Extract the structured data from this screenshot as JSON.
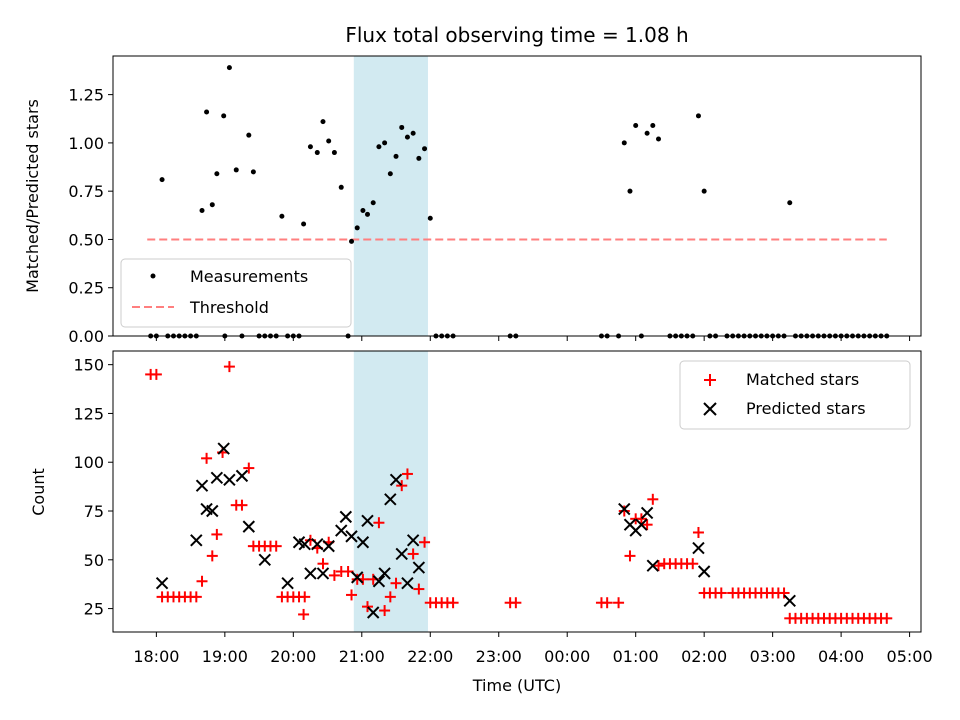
{
  "chart_data": [
    {
      "type": "scatter",
      "title": "Flux total observing time = 1.08 h",
      "ylabel": "Matched/Predicted stars",
      "xlim": [
        "17:22",
        "05:10"
      ],
      "ylim": [
        0,
        1.45
      ],
      "y_ticks": [
        "0.00",
        "0.25",
        "0.50",
        "0.75",
        "1.00",
        "1.25"
      ],
      "highlight_span": {
        "from": "20:53",
        "to": "21:58",
        "color": "#add8e6"
      },
      "legend_position": "lower-left",
      "legend": [
        "Measurements",
        "Threshold"
      ],
      "threshold": {
        "name": "Threshold",
        "value": 0.5,
        "x_from": "17:52",
        "x_to": "04:40",
        "color": "#ff7f7f",
        "style": "dashed"
      },
      "series": [
        {
          "name": "Measurements",
          "marker": "dot",
          "color": "#000000",
          "points": [
            [
              "17:55",
              0
            ],
            [
              "18:00",
              0
            ],
            [
              "18:05",
              0.81
            ],
            [
              "18:10",
              0
            ],
            [
              "18:15",
              0
            ],
            [
              "18:20",
              0
            ],
            [
              "18:25",
              0
            ],
            [
              "18:30",
              0
            ],
            [
              "18:35",
              0
            ],
            [
              "18:40",
              0.65
            ],
            [
              "18:44",
              1.16
            ],
            [
              "18:49",
              0.68
            ],
            [
              "18:53",
              0.84
            ],
            [
              "18:59",
              1.14
            ],
            [
              "19:00",
              0
            ],
            [
              "19:04",
              1.39
            ],
            [
              "19:10",
              0.86
            ],
            [
              "19:15",
              0
            ],
            [
              "19:21",
              1.04
            ],
            [
              "19:25",
              0.85
            ],
            [
              "19:30",
              0
            ],
            [
              "19:35",
              0
            ],
            [
              "19:40",
              0
            ],
            [
              "19:45",
              0
            ],
            [
              "19:50",
              0.62
            ],
            [
              "19:55",
              0
            ],
            [
              "20:00",
              0
            ],
            [
              "20:05",
              0
            ],
            [
              "20:09",
              0.58
            ],
            [
              "20:15",
              0.98
            ],
            [
              "20:21",
              0.95
            ],
            [
              "20:26",
              1.11
            ],
            [
              "20:31",
              1.01
            ],
            [
              "20:36",
              0.95
            ],
            [
              "20:42",
              0.77
            ],
            [
              "20:48",
              0
            ],
            [
              "20:51",
              0.49
            ],
            [
              "20:56",
              0.56
            ],
            [
              "21:01",
              0.65
            ],
            [
              "21:05",
              0.63
            ],
            [
              "21:10",
              0.69
            ],
            [
              "21:15",
              0.98
            ],
            [
              "21:20",
              1.0
            ],
            [
              "21:25",
              0.84
            ],
            [
              "21:30",
              0.93
            ],
            [
              "21:35",
              1.08
            ],
            [
              "21:40",
              1.03
            ],
            [
              "21:45",
              1.05
            ],
            [
              "21:50",
              0.92
            ],
            [
              "21:55",
              0.97
            ],
            [
              "22:00",
              0.61
            ],
            [
              "22:05",
              0
            ],
            [
              "22:10",
              0
            ],
            [
              "22:15",
              0
            ],
            [
              "22:20",
              0
            ],
            [
              "23:10",
              0
            ],
            [
              "23:15",
              0
            ],
            [
              "00:30",
              0
            ],
            [
              "00:35",
              0
            ],
            [
              "00:45",
              0
            ],
            [
              "00:50",
              1.0
            ],
            [
              "00:55",
              0.75
            ],
            [
              "01:00",
              1.09
            ],
            [
              "01:05",
              0
            ],
            [
              "01:10",
              1.05
            ],
            [
              "01:15",
              1.09
            ],
            [
              "01:20",
              1.02
            ],
            [
              "01:30",
              0
            ],
            [
              "01:35",
              0
            ],
            [
              "01:40",
              0
            ],
            [
              "01:45",
              0
            ],
            [
              "01:50",
              0
            ],
            [
              "01:55",
              1.14
            ],
            [
              "02:00",
              0.75
            ],
            [
              "02:05",
              0
            ],
            [
              "02:10",
              0
            ],
            [
              "02:20",
              0
            ],
            [
              "02:25",
              0
            ],
            [
              "02:30",
              0
            ],
            [
              "02:35",
              0
            ],
            [
              "02:40",
              0
            ],
            [
              "02:45",
              0
            ],
            [
              "02:50",
              0
            ],
            [
              "02:55",
              0
            ],
            [
              "03:00",
              0
            ],
            [
              "03:05",
              0
            ],
            [
              "03:10",
              0
            ],
            [
              "03:15",
              0.69
            ],
            [
              "03:20",
              0
            ],
            [
              "03:25",
              0
            ],
            [
              "03:30",
              0
            ],
            [
              "03:35",
              0
            ],
            [
              "03:40",
              0
            ],
            [
              "03:45",
              0
            ],
            [
              "03:50",
              0
            ],
            [
              "03:55",
              0
            ],
            [
              "04:00",
              0
            ],
            [
              "04:05",
              0
            ],
            [
              "04:10",
              0
            ],
            [
              "04:15",
              0
            ],
            [
              "04:20",
              0
            ],
            [
              "04:25",
              0
            ],
            [
              "04:30",
              0
            ],
            [
              "04:35",
              0
            ],
            [
              "04:40",
              0
            ]
          ]
        }
      ]
    },
    {
      "type": "scatter",
      "xlabel": "Time (UTC)",
      "ylabel": "Count",
      "xlim": [
        "17:22",
        "05:10"
      ],
      "ylim": [
        13,
        157
      ],
      "x_ticks": [
        "18:00",
        "19:00",
        "20:00",
        "21:00",
        "22:00",
        "23:00",
        "00:00",
        "01:00",
        "02:00",
        "03:00",
        "04:00",
        "05:00"
      ],
      "y_ticks": [
        "25",
        "50",
        "75",
        "100",
        "125",
        "150"
      ],
      "highlight_span": {
        "from": "20:53",
        "to": "21:58",
        "color": "#add8e6"
      },
      "legend_position": "top-right",
      "legend": [
        "Matched stars",
        "Predicted stars"
      ],
      "series": [
        {
          "name": "Matched stars",
          "marker": "plus",
          "color": "#ff0000",
          "points": [
            [
              "17:55",
              145
            ],
            [
              "18:00",
              145
            ],
            [
              "18:05",
              31
            ],
            [
              "18:10",
              31
            ],
            [
              "18:15",
              31
            ],
            [
              "18:20",
              31
            ],
            [
              "18:25",
              31
            ],
            [
              "18:30",
              31
            ],
            [
              "18:35",
              31
            ],
            [
              "18:40",
              39
            ],
            [
              "18:44",
              102
            ],
            [
              "18:49",
              52
            ],
            [
              "18:53",
              63
            ],
            [
              "18:58",
              105
            ],
            [
              "19:04",
              149
            ],
            [
              "19:10",
              78
            ],
            [
              "19:15",
              78
            ],
            [
              "19:21",
              97
            ],
            [
              "19:25",
              57
            ],
            [
              "19:30",
              57
            ],
            [
              "19:35",
              57
            ],
            [
              "19:40",
              57
            ],
            [
              "19:45",
              57
            ],
            [
              "19:50",
              31
            ],
            [
              "19:55",
              31
            ],
            [
              "20:00",
              31
            ],
            [
              "20:05",
              31
            ],
            [
              "20:10",
              31
            ],
            [
              "20:09",
              22
            ],
            [
              "20:15",
              60
            ],
            [
              "20:21",
              56
            ],
            [
              "20:26",
              48
            ],
            [
              "20:31",
              59
            ],
            [
              "20:36",
              42
            ],
            [
              "20:42",
              44
            ],
            [
              "20:48",
              44
            ],
            [
              "20:51",
              32
            ],
            [
              "20:56",
              40
            ],
            [
              "21:01",
              40
            ],
            [
              "21:05",
              26
            ],
            [
              "21:10",
              40
            ],
            [
              "21:15",
              69
            ],
            [
              "21:20",
              24
            ],
            [
              "21:25",
              31
            ],
            [
              "21:30",
              38
            ],
            [
              "21:35",
              88
            ],
            [
              "21:40",
              94
            ],
            [
              "21:45",
              53
            ],
            [
              "21:50",
              35
            ],
            [
              "21:55",
              59
            ],
            [
              "22:00",
              28
            ],
            [
              "22:05",
              28
            ],
            [
              "22:10",
              28
            ],
            [
              "22:15",
              28
            ],
            [
              "22:20",
              28
            ],
            [
              "23:10",
              28
            ],
            [
              "23:15",
              28
            ],
            [
              "00:30",
              28
            ],
            [
              "00:35",
              28
            ],
            [
              "00:45",
              28
            ],
            [
              "00:50",
              75
            ],
            [
              "00:55",
              52
            ],
            [
              "01:00",
              71
            ],
            [
              "01:05",
              71
            ],
            [
              "01:10",
              68
            ],
            [
              "01:15",
              81
            ],
            [
              "01:20",
              47
            ],
            [
              "01:25",
              48
            ],
            [
              "01:30",
              48
            ],
            [
              "01:35",
              48
            ],
            [
              "01:40",
              48
            ],
            [
              "01:45",
              48
            ],
            [
              "01:50",
              48
            ],
            [
              "01:55",
              64
            ],
            [
              "02:00",
              33
            ],
            [
              "02:05",
              33
            ],
            [
              "02:10",
              33
            ],
            [
              "02:15",
              33
            ],
            [
              "02:25",
              33
            ],
            [
              "02:30",
              33
            ],
            [
              "02:35",
              33
            ],
            [
              "02:40",
              33
            ],
            [
              "02:45",
              33
            ],
            [
              "02:50",
              33
            ],
            [
              "02:55",
              33
            ],
            [
              "03:00",
              33
            ],
            [
              "03:05",
              33
            ],
            [
              "03:10",
              33
            ],
            [
              "03:15",
              20
            ],
            [
              "03:20",
              20
            ],
            [
              "03:25",
              20
            ],
            [
              "03:30",
              20
            ],
            [
              "03:35",
              20
            ],
            [
              "03:40",
              20
            ],
            [
              "03:45",
              20
            ],
            [
              "03:50",
              20
            ],
            [
              "03:55",
              20
            ],
            [
              "04:00",
              20
            ],
            [
              "04:05",
              20
            ],
            [
              "04:10",
              20
            ],
            [
              "04:15",
              20
            ],
            [
              "04:20",
              20
            ],
            [
              "04:25",
              20
            ],
            [
              "04:30",
              20
            ],
            [
              "04:35",
              20
            ],
            [
              "04:40",
              20
            ]
          ]
        },
        {
          "name": "Predicted stars",
          "marker": "x",
          "color": "#000000",
          "points": [
            [
              "18:05",
              38
            ],
            [
              "18:35",
              60
            ],
            [
              "18:40",
              88
            ],
            [
              "18:44",
              76
            ],
            [
              "18:49",
              75
            ],
            [
              "18:53",
              92
            ],
            [
              "18:59",
              107
            ],
            [
              "19:04",
              91
            ],
            [
              "19:15",
              93
            ],
            [
              "19:21",
              67
            ],
            [
              "19:35",
              50
            ],
            [
              "19:55",
              38
            ],
            [
              "20:05",
              59
            ],
            [
              "20:10",
              58
            ],
            [
              "20:15",
              43
            ],
            [
              "20:21",
              58
            ],
            [
              "20:26",
              43
            ],
            [
              "20:31",
              57
            ],
            [
              "20:42",
              65
            ],
            [
              "20:46",
              72
            ],
            [
              "20:51",
              62
            ],
            [
              "20:56",
              41
            ],
            [
              "21:01",
              59
            ],
            [
              "21:05",
              70
            ],
            [
              "21:10",
              23
            ],
            [
              "21:15",
              39
            ],
            [
              "21:20",
              43
            ],
            [
              "21:25",
              81
            ],
            [
              "21:30",
              91
            ],
            [
              "21:35",
              53
            ],
            [
              "21:40",
              38
            ],
            [
              "21:45",
              60
            ],
            [
              "21:50",
              46
            ],
            [
              "00:50",
              76
            ],
            [
              "00:55",
              68
            ],
            [
              "01:00",
              65
            ],
            [
              "01:05",
              68
            ],
            [
              "01:10",
              74
            ],
            [
              "01:15",
              47
            ],
            [
              "01:55",
              56
            ],
            [
              "02:00",
              44
            ],
            [
              "03:15",
              29
            ]
          ]
        }
      ]
    }
  ]
}
